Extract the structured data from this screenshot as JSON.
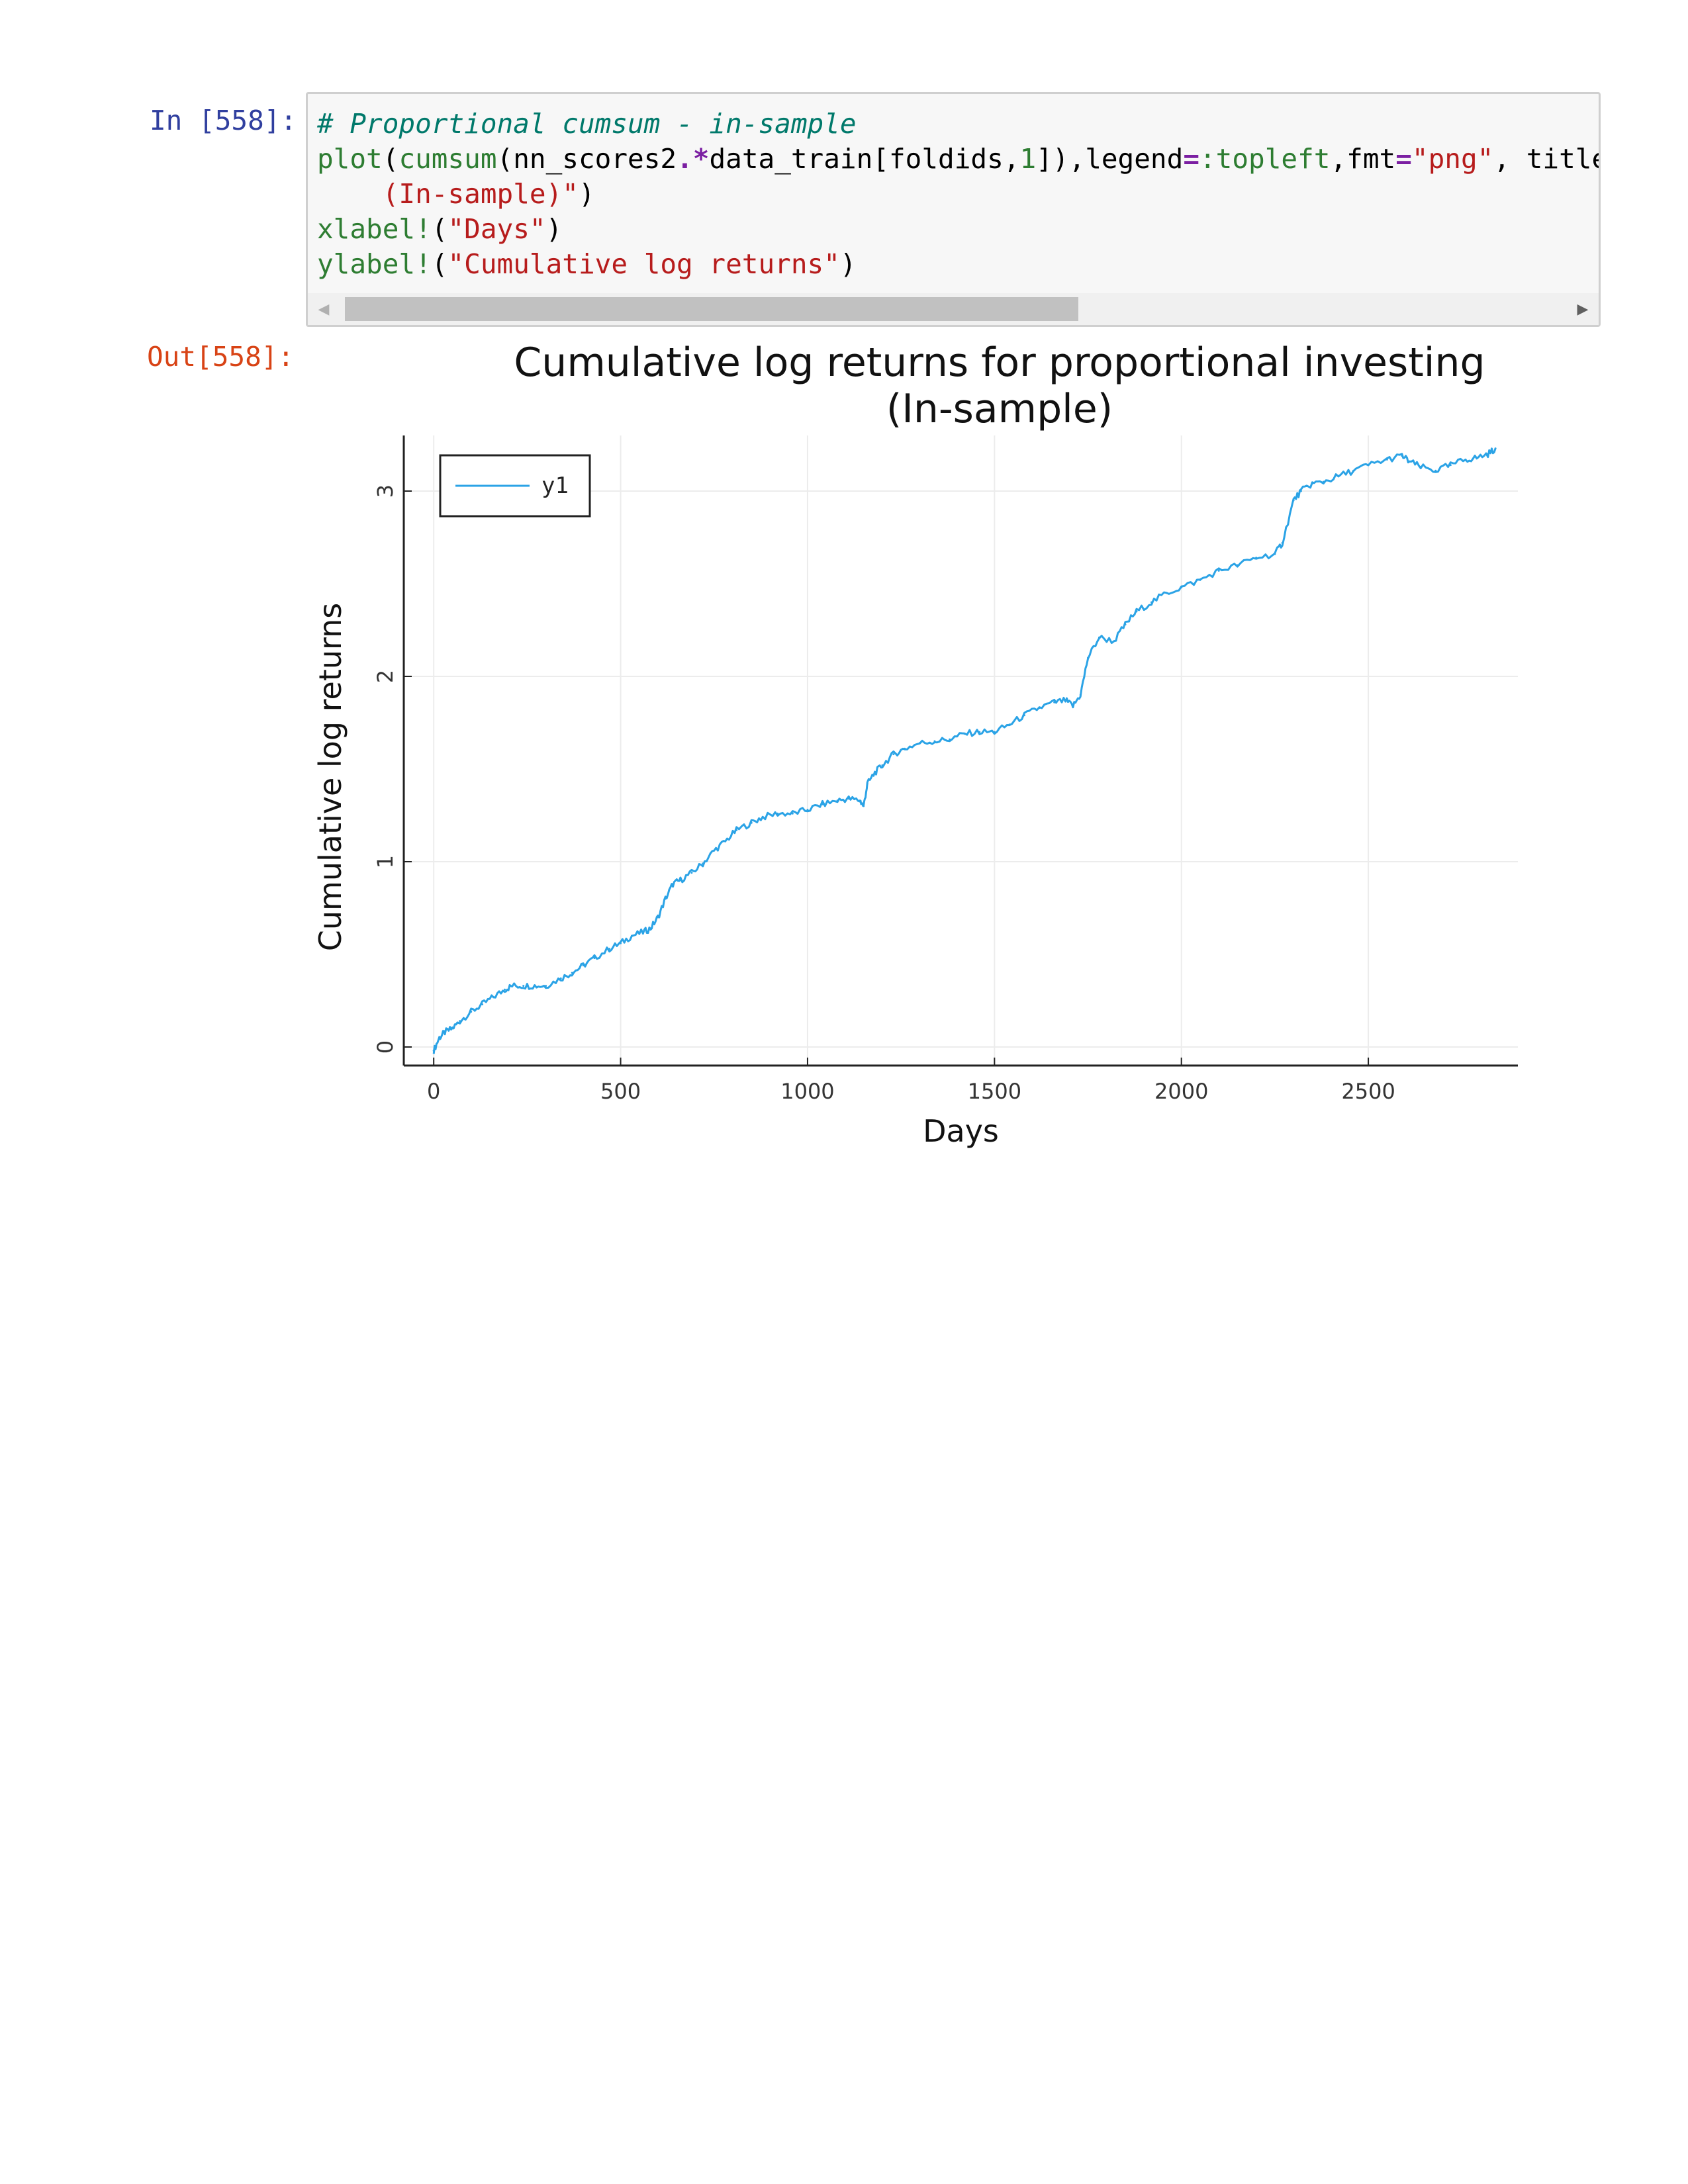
{
  "cell": {
    "in_prompt": "In [558]:",
    "out_prompt": "Out[558]:",
    "code_lines": [
      [
        {
          "t": "# Proportional cumsum - in-sample",
          "c": "#00796b",
          "i": true
        }
      ],
      [
        {
          "t": "plot",
          "c": "#2e7d32"
        },
        {
          "t": "(",
          "c": "#000000"
        },
        {
          "t": "cumsum",
          "c": "#2e7d32"
        },
        {
          "t": "(nn_scores2",
          "c": "#000000"
        },
        {
          "t": ".*",
          "c": "#7b1fa2",
          "b": true
        },
        {
          "t": "data_train[foldids,",
          "c": "#000000"
        },
        {
          "t": "1",
          "c": "#2e7d32"
        },
        {
          "t": "]),legend",
          "c": "#000000"
        },
        {
          "t": "=",
          "c": "#7b1fa2",
          "b": true
        },
        {
          "t": ":topleft",
          "c": "#2e7d32"
        },
        {
          "t": ",fmt",
          "c": "#000000"
        },
        {
          "t": "=",
          "c": "#7b1fa2",
          "b": true
        },
        {
          "t": "\"png\"",
          "c": "#b71c1c"
        },
        {
          "t": ", title ",
          "c": "#000000"
        },
        {
          "t": "=",
          "c": "#7b1fa2",
          "b": true
        }
      ],
      [
        {
          "t": "    (In-sample)\"",
          "c": "#b71c1c"
        },
        {
          "t": ")",
          "c": "#000000"
        }
      ],
      [
        {
          "t": "xlabel!",
          "c": "#2e7d32"
        },
        {
          "t": "(",
          "c": "#000000"
        },
        {
          "t": "\"Days\"",
          "c": "#b71c1c"
        },
        {
          "t": ")",
          "c": "#000000"
        }
      ],
      [
        {
          "t": "ylabel!",
          "c": "#2e7d32"
        },
        {
          "t": "(",
          "c": "#000000"
        },
        {
          "t": "\"Cumulative log returns\"",
          "c": "#b71c1c"
        },
        {
          "t": ")",
          "c": "#000000"
        }
      ]
    ],
    "scroll_left_icon": "triangle-left-icon",
    "scroll_right_icon": "triangle-right-icon"
  },
  "chart_data": {
    "type": "line",
    "title": "Cumulative log returns for proportional investing",
    "subtitle": "(In-sample)",
    "xlabel": "Days",
    "ylabel": "Cumulative log returns",
    "xlim": [
      -80,
      2900
    ],
    "ylim": [
      -0.1,
      3.3
    ],
    "xticks": [
      0,
      500,
      1000,
      1500,
      2000,
      2500
    ],
    "yticks": [
      0,
      1,
      2,
      3
    ],
    "grid": true,
    "legend": "top-left",
    "series": [
      {
        "name": "y1",
        "color": "#2ba3e6",
        "x": [
          0,
          15,
          30,
          50,
          70,
          100,
          130,
          160,
          190,
          210,
          240,
          270,
          300,
          340,
          370,
          400,
          430,
          470,
          500,
          530,
          560,
          580,
          600,
          620,
          640,
          660,
          690,
          720,
          750,
          780,
          810,
          850,
          880,
          920,
          960,
          1000,
          1040,
          1080,
          1110,
          1140,
          1150,
          1160,
          1180,
          1200,
          1230,
          1260,
          1300,
          1340,
          1380,
          1420,
          1460,
          1500,
          1540,
          1580,
          1620,
          1660,
          1690,
          1710,
          1730,
          1750,
          1780,
          1820,
          1850,
          1880,
          1920,
          1960,
          2000,
          2050,
          2100,
          2150,
          2200,
          2250,
          2270,
          2300,
          2320,
          2350,
          2380,
          2420,
          2460,
          2500,
          2550,
          2590,
          2610,
          2640,
          2680,
          2720,
          2760,
          2790,
          2820,
          2840
        ],
        "values": [
          -0.02,
          0.05,
          0.08,
          0.1,
          0.14,
          0.19,
          0.23,
          0.27,
          0.31,
          0.33,
          0.33,
          0.33,
          0.33,
          0.37,
          0.4,
          0.44,
          0.48,
          0.53,
          0.56,
          0.6,
          0.62,
          0.64,
          0.7,
          0.8,
          0.88,
          0.9,
          0.94,
          0.99,
          1.06,
          1.11,
          1.17,
          1.21,
          1.24,
          1.26,
          1.26,
          1.28,
          1.31,
          1.33,
          1.34,
          1.33,
          1.3,
          1.42,
          1.48,
          1.52,
          1.58,
          1.61,
          1.64,
          1.65,
          1.66,
          1.69,
          1.7,
          1.7,
          1.74,
          1.79,
          1.83,
          1.86,
          1.87,
          1.84,
          1.9,
          2.1,
          2.21,
          2.19,
          2.28,
          2.35,
          2.4,
          2.45,
          2.48,
          2.52,
          2.57,
          2.6,
          2.64,
          2.66,
          2.72,
          2.95,
          3.0,
          3.04,
          3.05,
          3.08,
          3.11,
          3.14,
          3.17,
          3.19,
          3.16,
          3.13,
          3.11,
          3.14,
          3.17,
          3.18,
          3.2,
          3.23
        ]
      }
    ]
  }
}
